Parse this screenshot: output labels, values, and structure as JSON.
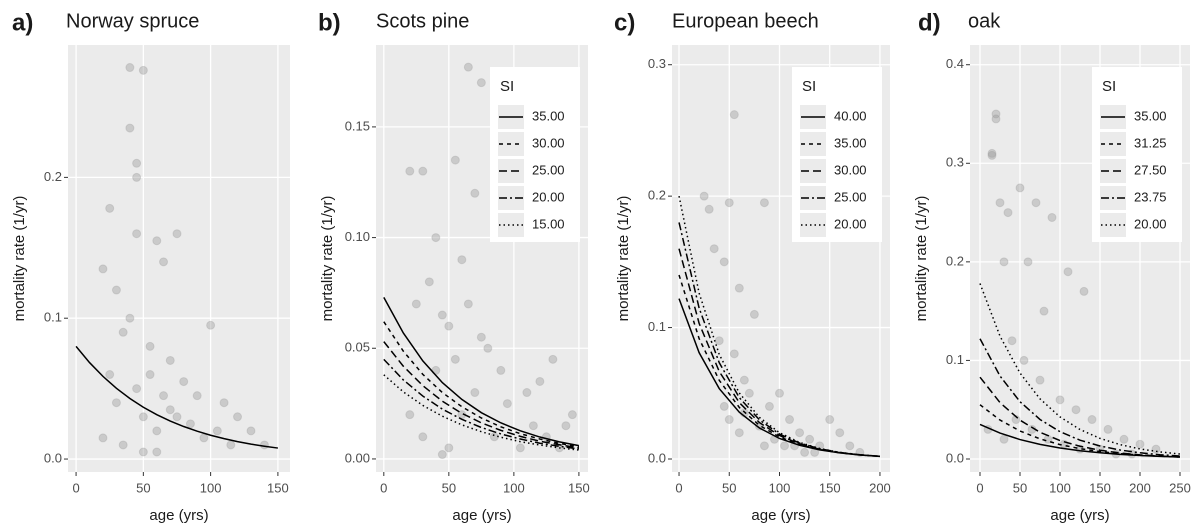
{
  "chart_data": [
    {
      "type": "scatter",
      "panel_label": "a)",
      "title": "Norway spruce",
      "xlabel": "age (yrs)",
      "ylabel": "mortality rate (1/yr)",
      "xlim": [
        -6,
        159
      ],
      "ylim": [
        -0.0092,
        0.294
      ],
      "xticks": [
        0,
        50,
        100,
        150
      ],
      "yticks": [
        {
          "value": 0,
          "label": "0.0"
        },
        0.1,
        0.2
      ],
      "grid": true,
      "points": {
        "color": "#999999",
        "x": [
          40,
          50,
          40,
          45,
          45,
          45,
          25,
          60,
          75,
          20,
          30,
          65,
          100,
          35,
          55,
          70,
          80,
          90,
          110,
          120,
          130,
          140,
          25,
          30,
          45,
          50,
          60,
          70,
          85,
          95,
          105,
          115,
          35,
          55,
          65,
          75,
          40,
          50,
          60,
          20
        ],
        "y": [
          0.278,
          0.276,
          0.235,
          0.21,
          0.2,
          0.16,
          0.178,
          0.155,
          0.16,
          0.135,
          0.12,
          0.14,
          0.095,
          0.09,
          0.08,
          0.07,
          0.055,
          0.045,
          0.04,
          0.03,
          0.02,
          0.01,
          0.06,
          0.04,
          0.05,
          0.03,
          0.02,
          0.035,
          0.025,
          0.015,
          0.02,
          0.01,
          0.01,
          0.06,
          0.045,
          0.03,
          0.1,
          0.005,
          0.005,
          0.015
        ]
      },
      "line_x": [
        0,
        10,
        20,
        30,
        40,
        50,
        60,
        70,
        80,
        90,
        100,
        110,
        120,
        130,
        140,
        150
      ],
      "series": [
        {
          "linestyle": "solid",
          "color": "#000000",
          "values": [
            0.08,
            0.0685,
            0.0587,
            0.0502,
            0.043,
            0.0368,
            0.0315,
            0.027,
            0.0231,
            0.0198,
            0.0169,
            0.0145,
            0.0124,
            0.0106,
            0.0091,
            0.0078
          ]
        }
      ]
    },
    {
      "type": "scatter",
      "panel_label": "b)",
      "title": "Scots pine",
      "xlabel": "age (yrs)",
      "ylabel": "mortality rate (1/yr)",
      "xlim": [
        -6,
        157
      ],
      "ylim": [
        -0.0059,
        0.187
      ],
      "xticks": [
        0,
        50,
        100,
        150
      ],
      "yticks": [
        {
          "value": 0,
          "label": "0.00"
        },
        {
          "value": 0.05,
          "label": "0.05"
        },
        {
          "value": 0.1,
          "label": "0.10"
        },
        {
          "value": 0.15,
          "label": "0.15"
        }
      ],
      "grid": true,
      "points": {
        "color": "#999999",
        "x": [
          65,
          75,
          55,
          30,
          20,
          70,
          100,
          40,
          60,
          130,
          145,
          25,
          35,
          45,
          50,
          80,
          90,
          110,
          120,
          140,
          30,
          50,
          60,
          70,
          85,
          95,
          105,
          115,
          40,
          55,
          65,
          75,
          125,
          135,
          20,
          45
        ],
        "y": [
          0.177,
          0.17,
          0.135,
          0.13,
          0.13,
          0.12,
          0.11,
          0.1,
          0.09,
          0.045,
          0.02,
          0.07,
          0.08,
          0.065,
          0.06,
          0.05,
          0.04,
          0.03,
          0.035,
          0.015,
          0.01,
          0.005,
          0.02,
          0.03,
          0.01,
          0.025,
          0.005,
          0.015,
          0.04,
          0.045,
          0.07,
          0.055,
          0.01,
          0.005,
          0.02,
          0.002
        ]
      },
      "legend_title": "SI",
      "line_x": [
        0,
        15,
        30,
        45,
        60,
        75,
        90,
        105,
        120,
        135,
        150
      ],
      "series": [
        {
          "name": "35.00",
          "linestyle": "solid",
          "color": "#000000",
          "values": [
            0.073,
            0.0569,
            0.0443,
            0.0345,
            0.0269,
            0.0209,
            0.0163,
            0.0127,
            0.0099,
            0.0077,
            0.006
          ]
        },
        {
          "name": "30.00",
          "linestyle": "dashed",
          "color": "#000000",
          "values": [
            0.062,
            0.0487,
            0.0382,
            0.03,
            0.0236,
            0.0185,
            0.0145,
            0.0114,
            0.009,
            0.007,
            0.0055
          ]
        },
        {
          "name": "25.00",
          "linestyle": "longdash",
          "color": "#000000",
          "values": [
            0.053,
            0.0419,
            0.0331,
            0.0261,
            0.0206,
            0.0163,
            0.0129,
            0.0102,
            0.008,
            0.0064,
            0.005
          ]
        },
        {
          "name": "20.00",
          "linestyle": "twodash",
          "color": "#000000",
          "values": [
            0.045,
            0.0357,
            0.0284,
            0.0225,
            0.0179,
            0.0142,
            0.0113,
            0.009,
            0.0071,
            0.0057,
            0.0045
          ]
        },
        {
          "name": "15.00",
          "linestyle": "dotted",
          "color": "#000000",
          "values": [
            0.038,
            0.0303,
            0.0242,
            0.0193,
            0.0154,
            0.0123,
            0.0098,
            0.0078,
            0.0063,
            0.005,
            0.004
          ]
        }
      ]
    },
    {
      "type": "scatter",
      "panel_label": "c)",
      "title": "European beech",
      "xlabel": "age (yrs)",
      "ylabel": "mortality rate (1/yr)",
      "xlim": [
        -7,
        210
      ],
      "ylim": [
        -0.0099,
        0.315
      ],
      "xticks": [
        0,
        50,
        100,
        150,
        200
      ],
      "yticks": [
        {
          "value": 0,
          "label": "0.0"
        },
        0.1,
        0.2,
        0.3
      ],
      "grid": true,
      "points": {
        "color": "#999999",
        "x": [
          55,
          25,
          30,
          50,
          85,
          35,
          45,
          60,
          75,
          100,
          150,
          160,
          180,
          40,
          55,
          65,
          70,
          90,
          110,
          120,
          130,
          140,
          50,
          60,
          80,
          95,
          105,
          115,
          125,
          135,
          170,
          45,
          65,
          85
        ],
        "y": [
          0.262,
          0.2,
          0.19,
          0.195,
          0.195,
          0.16,
          0.15,
          0.13,
          0.11,
          0.05,
          0.03,
          0.02,
          0.005,
          0.09,
          0.08,
          0.06,
          0.05,
          0.04,
          0.03,
          0.02,
          0.015,
          0.01,
          0.03,
          0.02,
          0.025,
          0.015,
          0.01,
          0.01,
          0.005,
          0.005,
          0.01,
          0.04,
          0.035,
          0.01
        ]
      },
      "legend_title": "SI",
      "line_x": [
        0,
        20,
        40,
        60,
        80,
        100,
        120,
        140,
        160,
        180,
        200
      ],
      "series": [
        {
          "name": "40.00",
          "linestyle": "solid",
          "color": "#000000",
          "values": [
            0.122,
            0.0809,
            0.0536,
            0.0356,
            0.0236,
            0.0156,
            0.0104,
            0.0069,
            0.0046,
            0.003,
            0.002
          ]
        },
        {
          "name": "35.00",
          "linestyle": "dashed",
          "color": "#000000",
          "values": [
            0.14,
            0.0916,
            0.0599,
            0.0392,
            0.0256,
            0.0168,
            0.011,
            0.0072,
            0.0047,
            0.0031,
            0.002
          ]
        },
        {
          "name": "30.00",
          "linestyle": "longdash",
          "color": "#000000",
          "values": [
            0.16,
            0.1032,
            0.0666,
            0.0429,
            0.0277,
            0.0179,
            0.0115,
            0.0074,
            0.0048,
            0.0031,
            0.002
          ]
        },
        {
          "name": "25.00",
          "linestyle": "twodash",
          "color": "#000000",
          "values": [
            0.18,
            0.1148,
            0.0733,
            0.0467,
            0.0298,
            0.019,
            0.0121,
            0.0078,
            0.005,
            0.0032,
            0.002
          ]
        },
        {
          "name": "20.00",
          "linestyle": "dotted",
          "color": "#000000",
          "values": [
            0.2,
            0.1262,
            0.0796,
            0.0502,
            0.0317,
            0.02,
            0.0126,
            0.008,
            0.005,
            0.0032,
            0.002
          ]
        }
      ]
    },
    {
      "type": "scatter",
      "panel_label": "d)",
      "title": "oak",
      "xlabel": "age (yrs)",
      "ylabel": "mortality rate (1/yr)",
      "xlim": [
        -12.5,
        262.5
      ],
      "ylim": [
        -0.0132,
        0.42
      ],
      "xticks": [
        0,
        50,
        100,
        150,
        200,
        250
      ],
      "yticks": [
        {
          "value": 0,
          "label": "0.0"
        },
        0.1,
        0.2,
        0.3,
        0.4
      ],
      "grid": true,
      "points": {
        "color": "#999999",
        "x": [
          20,
          20,
          15,
          15,
          25,
          35,
          50,
          70,
          90,
          110,
          130,
          60,
          80,
          30,
          40,
          55,
          75,
          100,
          120,
          140,
          160,
          180,
          200,
          220,
          10,
          30,
          45,
          65,
          85,
          105,
          125,
          150,
          170,
          190
        ],
        "y": [
          0.35,
          0.345,
          0.31,
          0.308,
          0.26,
          0.25,
          0.275,
          0.26,
          0.245,
          0.19,
          0.17,
          0.2,
          0.15,
          0.2,
          0.12,
          0.1,
          0.08,
          0.06,
          0.05,
          0.04,
          0.03,
          0.02,
          0.015,
          0.01,
          0.03,
          0.02,
          0.04,
          0.03,
          0.02,
          0.015,
          0.01,
          0.01,
          0.005,
          0.005
        ]
      },
      "legend_title": "SI",
      "line_x": [
        0,
        25,
        50,
        75,
        100,
        125,
        150,
        175,
        200,
        225,
        250
      ],
      "series": [
        {
          "name": "35.00",
          "linestyle": "solid",
          "color": "#000000",
          "values": [
            0.035,
            0.0263,
            0.0197,
            0.0148,
            0.0111,
            0.0084,
            0.0063,
            0.0047,
            0.0035,
            0.0027,
            0.002
          ]
        },
        {
          "name": "31.25",
          "linestyle": "dashed",
          "color": "#000000",
          "values": [
            0.055,
            0.0395,
            0.0284,
            0.0204,
            0.0146,
            0.0105,
            0.0075,
            0.0054,
            0.0039,
            0.0028,
            0.002
          ]
        },
        {
          "name": "27.50",
          "linestyle": "longdash",
          "color": "#000000",
          "values": [
            0.083,
            0.0572,
            0.0394,
            0.0271,
            0.0187,
            0.0129,
            0.0089,
            0.0061,
            0.0042,
            0.0029,
            0.002
          ]
        },
        {
          "name": "23.75",
          "linestyle": "twodash",
          "color": "#000000",
          "values": [
            0.122,
            0.0842,
            0.0581,
            0.0401,
            0.0277,
            0.0191,
            0.0132,
            0.0091,
            0.0063,
            0.0043,
            0.003
          ]
        },
        {
          "name": "20.00",
          "linestyle": "dotted",
          "color": "#000000",
          "values": [
            0.178,
            0.1246,
            0.0872,
            0.061,
            0.0427,
            0.0299,
            0.0209,
            0.0146,
            0.0102,
            0.0072,
            0.005
          ]
        }
      ]
    }
  ]
}
